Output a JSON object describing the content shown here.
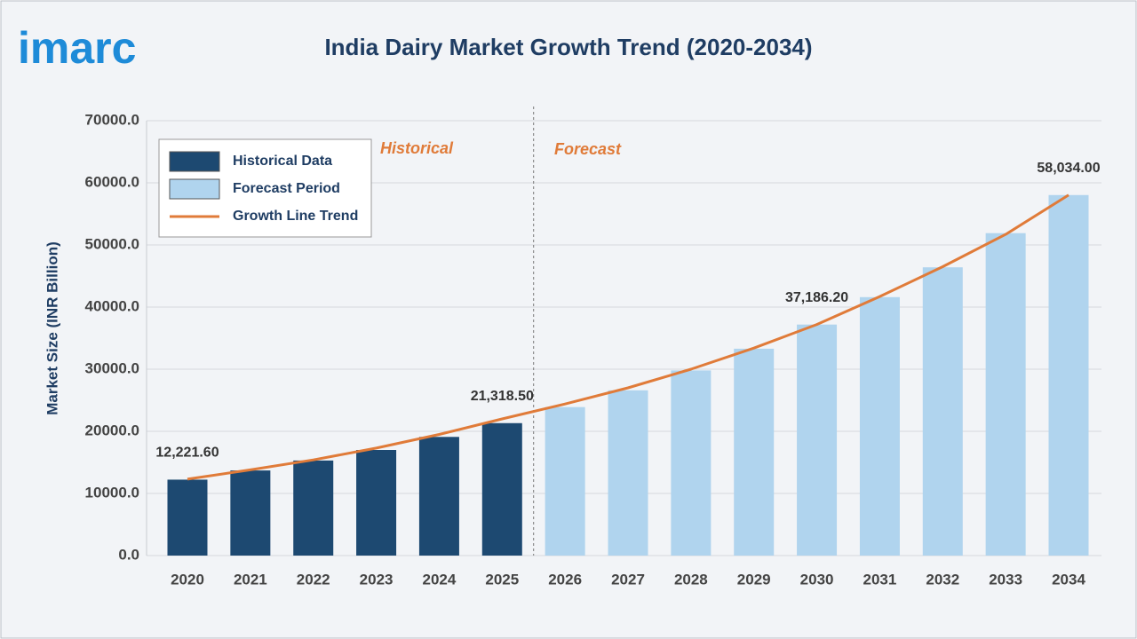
{
  "logo": "imarc",
  "chart_data": {
    "type": "bar",
    "title": "India Dairy Market Growth Trend (2020-2034)",
    "y_label": "Market Size (INR Billion)",
    "annotations": [
      "Historical",
      "Forecast"
    ],
    "categories": [
      "2020",
      "2021",
      "2022",
      "2023",
      "2024",
      "2025",
      "2026",
      "2027",
      "2028",
      "2029",
      "2030",
      "2031",
      "2032",
      "2033",
      "2034"
    ],
    "series": [
      {
        "name": "Historical Data",
        "color": "#1d4971",
        "values": [
          12221.6,
          13700,
          15300,
          17000,
          19100,
          21318.5,
          null,
          null,
          null,
          null,
          null,
          null,
          null,
          null,
          null
        ],
        "value_labels": [
          "12,221.60",
          null,
          null,
          null,
          null,
          "21,318.50",
          null,
          null,
          null,
          null,
          null,
          null,
          null,
          null,
          null
        ]
      },
      {
        "name": "Forecast Period",
        "color": "#b0d4ee",
        "values": [
          null,
          null,
          null,
          null,
          null,
          null,
          23900,
          26600,
          29800,
          33300,
          37186.2,
          41600,
          46400,
          51900,
          58034
        ],
        "value_labels": [
          null,
          null,
          null,
          null,
          null,
          null,
          null,
          null,
          null,
          null,
          "37,186.20",
          null,
          null,
          null,
          "58,034.00"
        ]
      },
      {
        "name": "Growth Line Trend",
        "color": "#e07b39",
        "kind": "line",
        "values": [
          12300,
          13800,
          15400,
          17300,
          19500,
          22000,
          24400,
          27000,
          30000,
          33400,
          37200,
          41700,
          46500,
          51700,
          58034
        ]
      }
    ],
    "ylim": [
      0,
      70000
    ],
    "yticks": [
      {
        "value": 0,
        "label": "0.0"
      },
      {
        "value": 10000,
        "label": "10000.0"
      },
      {
        "value": 20000,
        "label": "20000.0"
      },
      {
        "value": 30000,
        "label": "30000.0"
      },
      {
        "value": 40000,
        "label": "40000.0"
      },
      {
        "value": 50000,
        "label": "50000.0"
      },
      {
        "value": 60000,
        "label": "60000.0"
      },
      {
        "value": 70000,
        "label": "70000.0"
      }
    ],
    "grid": true
  }
}
